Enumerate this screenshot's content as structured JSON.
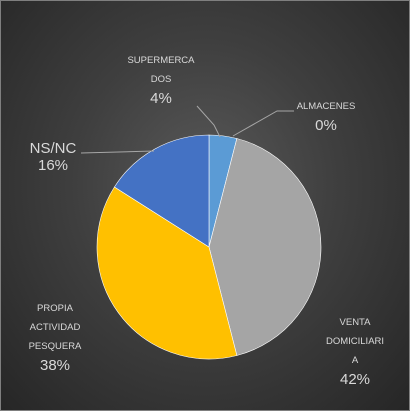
{
  "chart_data": {
    "type": "pie",
    "title": "",
    "unit": "%",
    "slices": [
      {
        "name": "SUPERMERCADOS",
        "label_lines": [
          "SUPERMERCA",
          "DOS"
        ],
        "value": 4,
        "value_label": "4%",
        "color": "#5b9bd5"
      },
      {
        "name": "ALMACENES",
        "label_lines": [
          "ALMACENES"
        ],
        "value": 0,
        "value_label": "0%",
        "color": "#ed7d31"
      },
      {
        "name": "VENTA DOMICILIARIA",
        "label_lines": [
          "VENTA",
          "DOMICILIARI",
          "A"
        ],
        "value": 42,
        "value_label": "42%",
        "color": "#a5a5a5"
      },
      {
        "name": "PROPIA ACTIVIDAD PESQUERA",
        "label_lines": [
          "PROPIA",
          "ACTIVIDAD",
          "PESQUERA"
        ],
        "value": 38,
        "value_label": "38%",
        "color": "#ffc000"
      },
      {
        "name": "NS/NC",
        "label_lines": [
          "NS/NC"
        ],
        "value": 16,
        "value_label": "16%",
        "color": "#4472c4"
      }
    ]
  }
}
